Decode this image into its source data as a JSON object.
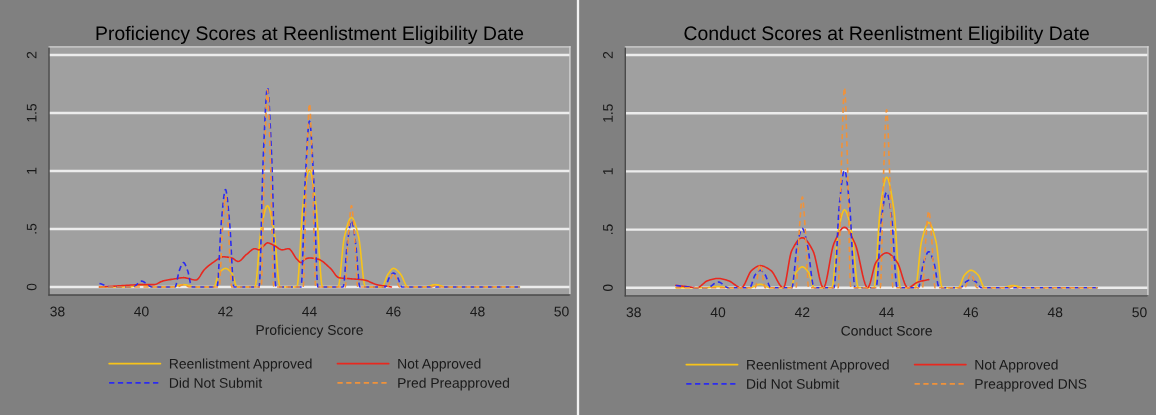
{
  "chart_data": [
    {
      "type": "line",
      "title": "Proficiency Scores at Reenlistment Eligibility Date",
      "xlabel": "Proficiency Score",
      "xlim": [
        37.8,
        50.2
      ],
      "xticks": [
        38,
        40,
        42,
        44,
        46,
        48,
        50
      ],
      "ylim": [
        -0.07,
        2.07
      ],
      "yticks": [
        0,
        {
          "value": 0.5,
          "label": ".5"
        },
        1,
        1.5,
        2
      ],
      "grid": "y",
      "legend": "bottom",
      "series": [
        {
          "name": "Reenlistment Approved",
          "color": "#f7c31a",
          "line_style": "solid",
          "x": [
            39.0,
            39.7,
            40.0,
            40.3,
            40.7,
            41.0,
            41.3,
            41.72,
            41.85,
            42.0,
            42.15,
            42.28,
            42.7,
            42.85,
            43.0,
            43.15,
            43.3,
            43.7,
            43.85,
            44.0,
            44.15,
            44.31,
            44.68,
            44.83,
            45.0,
            45.17,
            45.33,
            45.72,
            45.87,
            46.0,
            46.17,
            46.34,
            46.75,
            47.0,
            47.25,
            49.0
          ],
          "values": [
            0,
            0,
            0.02,
            0,
            0,
            0.02,
            0,
            0,
            0.12,
            0.16,
            0.12,
            0,
            0,
            0.5,
            0.7,
            0.5,
            0,
            0,
            0.72,
            1.01,
            0.72,
            0,
            0,
            0.43,
            0.6,
            0.43,
            0,
            0,
            0.11,
            0.16,
            0.11,
            0,
            0,
            0.02,
            0,
            0
          ]
        },
        {
          "name": "Not Approved",
          "color": "#e8281f",
          "line_style": "solid",
          "x": [
            39.0,
            39.5,
            40.0,
            40.3,
            40.5,
            40.8,
            41.0,
            41.3,
            41.5,
            41.7,
            41.95,
            42.15,
            42.3,
            42.5,
            42.7,
            42.8,
            42.9,
            43.0,
            43.15,
            43.35,
            43.5,
            43.7,
            43.8,
            43.9,
            44.0,
            44.2,
            44.5,
            44.7,
            45.0,
            45.3,
            45.6,
            45.95
          ],
          "values": [
            0,
            0.01,
            0.02,
            0.02,
            0.05,
            0.07,
            0.08,
            0.06,
            0.15,
            0.21,
            0.26,
            0.25,
            0.22,
            0.28,
            0.33,
            0.32,
            0.35,
            0.38,
            0.36,
            0.32,
            0.33,
            0.24,
            0.21,
            0.24,
            0.25,
            0.24,
            0.16,
            0.08,
            0.07,
            0.06,
            0.02,
            0
          ]
        },
        {
          "name": "Did Not Submit",
          "color": "#2b2bf0",
          "line_style": "dashed",
          "x": [
            39.0,
            39.3,
            39.8,
            40.0,
            40.25,
            40.8,
            40.9,
            41.0,
            41.1,
            41.2,
            41.8,
            41.9,
            42.0,
            42.1,
            42.2,
            42.8,
            42.9,
            43.0,
            43.1,
            43.2,
            43.8,
            43.9,
            44.0,
            44.1,
            44.2,
            44.8,
            44.9,
            45.0,
            45.1,
            45.2,
            45.8,
            45.9,
            46.0,
            46.1,
            46.2,
            49.0
          ],
          "values": [
            0.03,
            0,
            0,
            0.05,
            0,
            0,
            0.14,
            0.21,
            0.14,
            0,
            0,
            0.55,
            0.84,
            0.55,
            0,
            0,
            1.12,
            1.72,
            1.12,
            0,
            0,
            0.93,
            1.43,
            0.93,
            0,
            0,
            0.37,
            0.57,
            0.37,
            0,
            0,
            0.08,
            0.12,
            0.08,
            0,
            0
          ]
        },
        {
          "name": "Pred Preapproved",
          "color": "#f0923a",
          "line_style": "dashed",
          "x": [
            39.0,
            40.85,
            41.0,
            41.15,
            41.85,
            41.93,
            42.0,
            42.07,
            42.15,
            42.85,
            42.93,
            43.0,
            43.07,
            43.15,
            43.85,
            43.93,
            44.0,
            44.07,
            44.15,
            44.85,
            44.93,
            45.0,
            45.07,
            45.15,
            45.85,
            46.0,
            46.15,
            46.9,
            47.0,
            47.1,
            49.0
          ],
          "values": [
            0,
            0,
            0.02,
            0,
            0,
            0.5,
            0.78,
            0.5,
            0,
            0,
            1.1,
            1.7,
            1.1,
            0,
            0,
            1.0,
            1.58,
            1.0,
            0,
            0,
            0.45,
            0.7,
            0.45,
            0,
            0,
            0.12,
            0,
            0,
            0.01,
            0,
            0
          ]
        }
      ]
    },
    {
      "type": "line",
      "title": "Conduct Scores at Reenlistment Eligibility Date",
      "xlabel": "Conduct Score",
      "xlim": [
        37.8,
        50.2
      ],
      "xticks": [
        38,
        40,
        42,
        44,
        46,
        48,
        50
      ],
      "ylim": [
        -0.07,
        2.07
      ],
      "yticks": [
        0,
        {
          "value": 0.5,
          "label": ".5"
        },
        1,
        1.5,
        2
      ],
      "grid": "y",
      "legend": "bottom",
      "series": [
        {
          "name": "Reenlistment Approved",
          "color": "#f7c31a",
          "line_style": "solid",
          "x": [
            39.0,
            39.7,
            40.0,
            40.3,
            40.75,
            41.0,
            41.25,
            41.72,
            41.85,
            42.0,
            42.15,
            42.28,
            42.7,
            42.85,
            43.0,
            43.17,
            43.33,
            43.7,
            43.85,
            44.0,
            44.17,
            44.33,
            44.68,
            44.83,
            45.0,
            45.17,
            45.32,
            45.7,
            45.85,
            46.0,
            46.17,
            46.33,
            46.75,
            47.0,
            47.25,
            49.0
          ],
          "values": [
            0,
            0,
            0.01,
            0,
            0,
            0.03,
            0,
            0,
            0.13,
            0.18,
            0.13,
            0,
            0,
            0.48,
            0.67,
            0.48,
            0,
            0,
            0.68,
            0.95,
            0.68,
            0,
            0,
            0.4,
            0.56,
            0.4,
            0,
            0,
            0.11,
            0.15,
            0.11,
            0,
            0,
            0.02,
            0,
            0
          ]
        },
        {
          "name": "Not Approved",
          "color": "#e8281f",
          "line_style": "solid",
          "x": [
            39.0,
            39.25,
            39.5,
            39.75,
            40.0,
            40.25,
            40.55,
            40.8,
            41.0,
            41.25,
            41.55,
            41.75,
            42.0,
            42.25,
            42.5,
            42.75,
            43.0,
            43.25,
            43.55,
            43.75,
            44.0,
            44.25,
            44.5,
            44.75,
            45.0
          ],
          "values": [
            0.02,
            0.01,
            0,
            0.06,
            0.08,
            0.06,
            0,
            0.15,
            0.19,
            0.15,
            0,
            0.32,
            0.43,
            0.32,
            0,
            0.38,
            0.52,
            0.38,
            0,
            0.22,
            0.3,
            0.22,
            0,
            0.05,
            0.07
          ]
        },
        {
          "name": "Did Not Submit",
          "color": "#2b2bf0",
          "line_style": "dashed",
          "x": [
            39.0,
            39.5,
            39.75,
            40.0,
            40.25,
            40.75,
            40.88,
            41.0,
            41.12,
            41.25,
            41.75,
            41.88,
            42.0,
            42.12,
            42.28,
            42.75,
            42.88,
            43.0,
            43.12,
            43.25,
            43.75,
            43.88,
            44.0,
            44.12,
            44.25,
            44.75,
            44.88,
            45.0,
            45.12,
            45.25,
            45.75,
            45.88,
            46.0,
            46.12,
            46.25,
            49.0
          ],
          "values": [
            0.02,
            0,
            0,
            0.05,
            0,
            0,
            0.11,
            0.15,
            0.11,
            0,
            0,
            0.37,
            0.51,
            0.37,
            0,
            0,
            0.72,
            1.01,
            0.72,
            0,
            0,
            0.6,
            0.82,
            0.6,
            0,
            0,
            0.22,
            0.31,
            0.22,
            0,
            0,
            0.05,
            0.07,
            0.05,
            0,
            0
          ]
        },
        {
          "name": "Preapproved DNS",
          "color": "#f0923a",
          "line_style": "dashed",
          "x": [
            39.0,
            40.88,
            41.0,
            41.12,
            41.85,
            41.93,
            42.0,
            42.07,
            42.15,
            42.85,
            42.93,
            43.0,
            43.07,
            43.15,
            43.85,
            43.93,
            44.0,
            44.07,
            44.15,
            44.85,
            44.93,
            45.0,
            45.07,
            45.15,
            45.85,
            46.0,
            46.15,
            46.9,
            47.0,
            47.1,
            49.0
          ],
          "values": [
            0,
            0,
            0.2,
            0,
            0,
            0.5,
            0.78,
            0.5,
            0,
            0,
            1.1,
            1.72,
            1.1,
            0,
            0,
            1.0,
            1.53,
            1.0,
            0,
            0,
            0.42,
            0.66,
            0.42,
            0,
            0,
            0.12,
            0,
            0,
            0.01,
            0,
            0
          ]
        }
      ]
    }
  ]
}
